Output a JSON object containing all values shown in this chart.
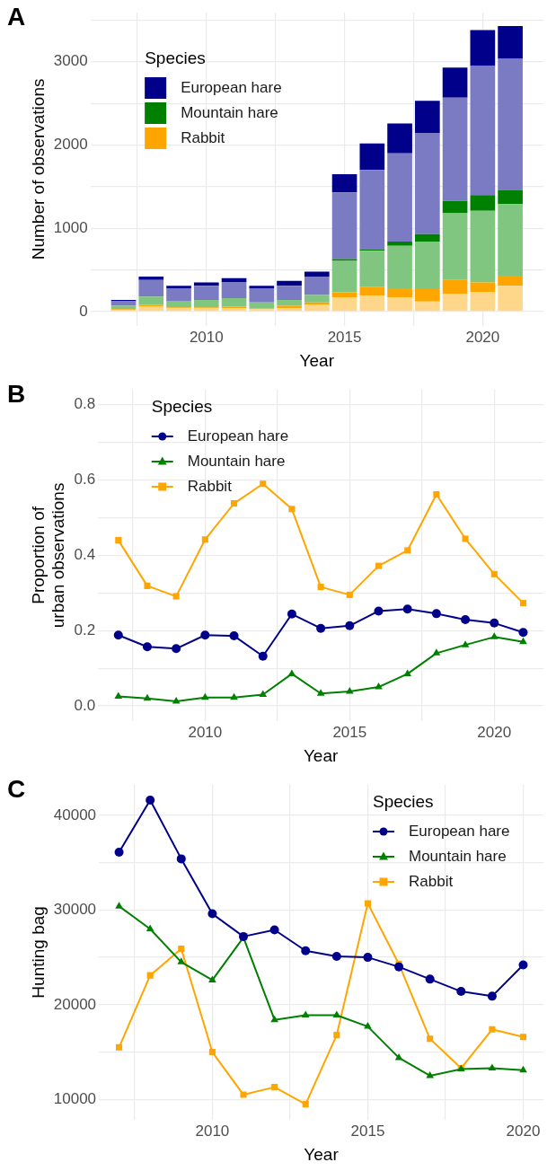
{
  "chart_data": [
    {
      "type": "bar",
      "title": "A",
      "xlabel": "Year",
      "ylabel": "Number of observations",
      "stacked": true,
      "grid": true,
      "legend": "top left",
      "legend_title": "Species",
      "x": [
        2007,
        2008,
        2009,
        2010,
        2011,
        2012,
        2013,
        2014,
        2015,
        2016,
        2017,
        2018,
        2019,
        2020,
        2021
      ],
      "xlim": [
        2005.8,
        2022.2
      ],
      "xticks": [
        {
          "value": 2007.5,
          "label": null
        },
        2010,
        {
          "value": 2012.5,
          "label": null
        },
        2015,
        {
          "value": 2017.5,
          "label": null
        },
        2020
      ],
      "ylim": [
        -171,
        3591
      ],
      "yticks": [
        0,
        {
          "value": 500,
          "label": null
        },
        1000,
        {
          "value": 1500,
          "label": null
        },
        2000,
        {
          "value": 2500,
          "label": null
        },
        3000,
        {
          "value": 3500,
          "label": null
        }
      ],
      "series": [
        {
          "color": "#ffd78a",
          "values": [
            20,
            60,
            40,
            40,
            40,
            30,
            40,
            80,
            170,
            190,
            170,
            120,
            210,
            230,
            310
          ]
        },
        {
          "name": "Rabbit",
          "color": "#ffa500",
          "values": [
            10,
            20,
            10,
            10,
            20,
            10,
            30,
            30,
            60,
            110,
            110,
            150,
            170,
            120,
            120
          ]
        },
        {
          "color": "#80c680",
          "values": [
            40,
            100,
            80,
            90,
            100,
            70,
            70,
            90,
            380,
            430,
            510,
            570,
            800,
            860,
            860
          ]
        },
        {
          "name": "Mountain hare",
          "color": "#008000",
          "values": [
            0,
            0,
            0,
            0,
            0,
            0,
            0,
            0,
            20,
            20,
            50,
            90,
            150,
            190,
            170
          ]
        },
        {
          "color": "#7b7bc4",
          "values": [
            60,
            200,
            150,
            170,
            190,
            170,
            170,
            220,
            800,
            950,
            1060,
            1210,
            1240,
            1550,
            1580
          ]
        },
        {
          "name": "European hare",
          "color": "#00008b",
          "values": [
            10,
            40,
            30,
            40,
            50,
            30,
            60,
            60,
            220,
            320,
            360,
            390,
            360,
            430,
            390
          ]
        }
      ]
    },
    {
      "type": "line",
      "title": "B",
      "xlabel": "Year",
      "ylabel": "Proportion of\nurban observations",
      "grid": true,
      "legend": "top left",
      "legend_title": "Species",
      "x": [
        2007,
        2008,
        2009,
        2010,
        2011,
        2012,
        2013,
        2014,
        2015,
        2016,
        2017,
        2018,
        2019,
        2020,
        2021
      ],
      "xlim": [
        2006.3,
        2021.7
      ],
      "xticks": [
        {
          "value": 2007.5,
          "label": null
        },
        2010,
        {
          "value": 2012.5,
          "label": null
        },
        2015,
        {
          "value": 2017.5,
          "label": null
        },
        2020
      ],
      "ylim": [
        -0.04,
        0.84
      ],
      "yticks": [
        {
          "value": 0,
          "label": "0.0"
        },
        {
          "value": 0.1,
          "label": null
        },
        {
          "value": 0.2,
          "label": "0.2"
        },
        {
          "value": 0.3,
          "label": null
        },
        {
          "value": 0.4,
          "label": "0.4"
        },
        {
          "value": 0.5,
          "label": null
        },
        {
          "value": 0.6,
          "label": "0.6"
        },
        {
          "value": 0.7,
          "label": null
        },
        {
          "value": 0.8,
          "label": "0.8"
        }
      ],
      "series": [
        {
          "name": "European hare",
          "color": "#00008b",
          "marker": "circle",
          "values": [
            0.188,
            0.157,
            0.152,
            0.188,
            0.186,
            0.132,
            0.244,
            0.206,
            0.213,
            0.252,
            0.257,
            0.245,
            0.229,
            0.22,
            0.195
          ]
        },
        {
          "name": "Mountain hare",
          "color": "#008000",
          "marker": "triangle",
          "values": [
            0.025,
            0.02,
            0.012,
            0.022,
            0.022,
            0.03,
            0.085,
            0.033,
            0.038,
            0.05,
            0.085,
            0.14,
            0.162,
            0.183,
            0.17
          ]
        },
        {
          "name": "Rabbit",
          "color": "#ffa500",
          "marker": "square",
          "values": [
            0.44,
            0.319,
            0.291,
            0.442,
            0.538,
            0.59,
            0.523,
            0.316,
            0.295,
            0.372,
            0.413,
            0.562,
            0.444,
            0.35,
            0.273
          ]
        }
      ]
    },
    {
      "type": "line",
      "title": "C",
      "xlabel": "Year",
      "ylabel": "Hunting bag",
      "grid": true,
      "legend": "top right",
      "legend_title": "Species",
      "x": [
        2007,
        2008,
        2009,
        2010,
        2011,
        2012,
        2013,
        2014,
        2015,
        2016,
        2017,
        2018,
        2019,
        2020
      ],
      "xlim": [
        2006.35,
        2020.65
      ],
      "xticks": [
        {
          "value": 2007.5,
          "label": null
        },
        2010,
        {
          "value": 2012.5,
          "label": null
        },
        2015,
        {
          "value": 2017.5,
          "label": null
        },
        2020
      ],
      "ylim": [
        7870,
        43210
      ],
      "yticks": [
        10000,
        {
          "value": 15000,
          "label": null
        },
        20000,
        {
          "value": 25000,
          "label": null
        },
        30000,
        {
          "value": 35000,
          "label": null
        },
        40000
      ],
      "series": [
        {
          "name": "European hare",
          "color": "#00008b",
          "marker": "circle",
          "values": [
            36100,
            41600,
            35400,
            29600,
            27200,
            27900,
            25700,
            25100,
            25000,
            24000,
            22700,
            21400,
            20900,
            24200
          ]
        },
        {
          "name": "Mountain hare",
          "color": "#008000",
          "marker": "triangle",
          "values": [
            30400,
            28000,
            24500,
            22600,
            27100,
            18400,
            18900,
            18900,
            17700,
            14400,
            12500,
            13200,
            13300,
            13100
          ]
        },
        {
          "name": "Rabbit",
          "color": "#ffa500",
          "marker": "square",
          "values": [
            15500,
            23100,
            25900,
            15000,
            10500,
            11300,
            9500,
            16800,
            30700,
            24300,
            16400,
            13300,
            17400,
            16600
          ]
        }
      ]
    }
  ]
}
